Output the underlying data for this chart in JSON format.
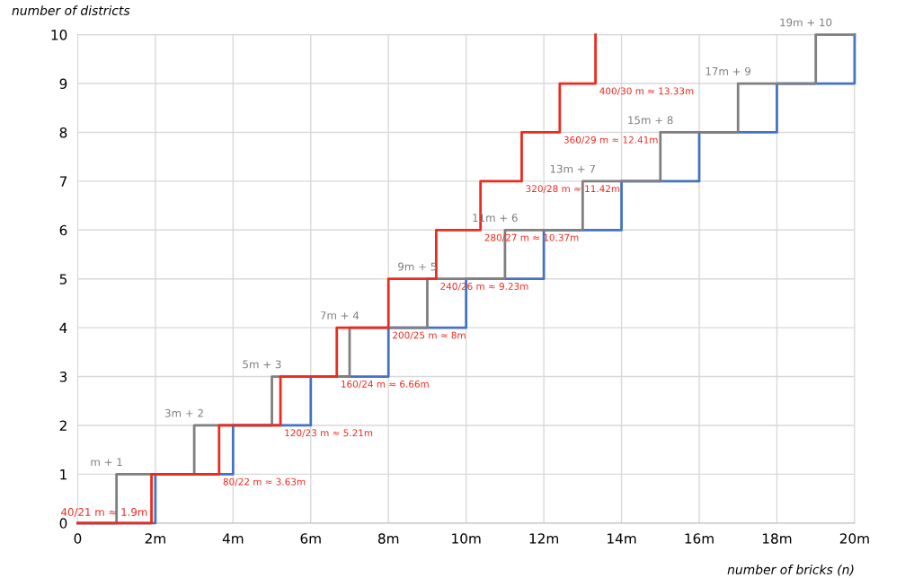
{
  "chart_data": {
    "type": "step",
    "xlabel": "number of bricks (n)",
    "ylabel": "number of districts",
    "xlim": [
      0,
      20
    ],
    "ylim": [
      0,
      10
    ],
    "xticks": [
      0,
      {
        "value": 2,
        "label": "2m"
      },
      {
        "value": 4,
        "label": "4m"
      },
      {
        "value": 6,
        "label": "6m"
      },
      {
        "value": 8,
        "label": "8m"
      },
      {
        "value": 10,
        "label": "10m"
      },
      {
        "value": 12,
        "label": "12m"
      },
      {
        "value": 14,
        "label": "14m"
      },
      {
        "value": 16,
        "label": "16m"
      },
      {
        "value": 18,
        "label": "18m"
      },
      {
        "value": 20,
        "label": "20m"
      }
    ],
    "yticks": [
      0,
      1,
      2,
      3,
      4,
      5,
      6,
      7,
      8,
      9,
      10
    ],
    "grid": true,
    "marker": "none",
    "line_style": "solid",
    "series": [
      {
        "color": "#4472c4",
        "x": [
          0,
          2,
          4,
          6,
          8,
          10,
          12,
          14,
          16,
          18,
          20
        ],
        "values": [
          0,
          1,
          2,
          3,
          4,
          5,
          6,
          7,
          8,
          9,
          10
        ]
      },
      {
        "color": "#7f7f7f",
        "x": [
          0,
          1,
          3,
          5,
          7,
          9,
          11,
          13,
          15,
          17,
          19,
          20
        ],
        "values": [
          0,
          1,
          2,
          3,
          4,
          5,
          6,
          7,
          8,
          9,
          10,
          10
        ]
      },
      {
        "color": "#ee2a1e",
        "x": [
          0,
          1.9,
          3.64,
          5.22,
          6.67,
          8,
          9.23,
          10.37,
          11.43,
          12.41,
          13.33
        ],
        "values": [
          0,
          1,
          2,
          3,
          4,
          5,
          6,
          7,
          8,
          9,
          10
        ]
      }
    ],
    "annotations": [
      {
        "text": "m + 1",
        "x": 1,
        "y": 1
      },
      {
        "text": "3m + 2",
        "x": 3,
        "y": 2
      },
      {
        "text": "5m + 3",
        "x": 5,
        "y": 3
      },
      {
        "text": "7m + 4",
        "x": 7,
        "y": 4
      },
      {
        "text": "9m + 5",
        "x": 9,
        "y": 5
      },
      {
        "text": "11m + 6",
        "x": 11,
        "y": 6
      },
      {
        "text": "13m + 7",
        "x": 13,
        "y": 7
      },
      {
        "text": "15m + 8",
        "x": 15,
        "y": 8
      },
      {
        "text": "17m + 9",
        "x": 17,
        "y": 9
      },
      {
        "text": "19m + 10",
        "x": 19,
        "y": 10
      },
      {
        "text": "40/21 m ≈ 1.9m",
        "x": 1.9,
        "y": 0
      },
      {
        "text": "80/22 m ≈ 3.63m",
        "x": 3.64,
        "y": 1
      },
      {
        "text": "120/23 m ≈ 5.21m",
        "x": 5.22,
        "y": 2
      },
      {
        "text": "160/24 m ≈ 6.66m",
        "x": 6.67,
        "y": 3
      },
      {
        "text": "200/25 m ≈ 8m",
        "x": 8,
        "y": 4
      },
      {
        "text": "240/26 m ≈ 9.23m",
        "x": 9.23,
        "y": 5
      },
      {
        "text": "280/27 m ≈ 10.37m",
        "x": 10.37,
        "y": 6
      },
      {
        "text": "320/28 m ≈ 11.42m",
        "x": 11.43,
        "y": 7
      },
      {
        "text": "360/29 m ≈ 12.41m",
        "x": 12.41,
        "y": 8
      },
      {
        "text": "400/30 m ≈ 13.33m",
        "x": 13.33,
        "y": 9
      }
    ]
  }
}
